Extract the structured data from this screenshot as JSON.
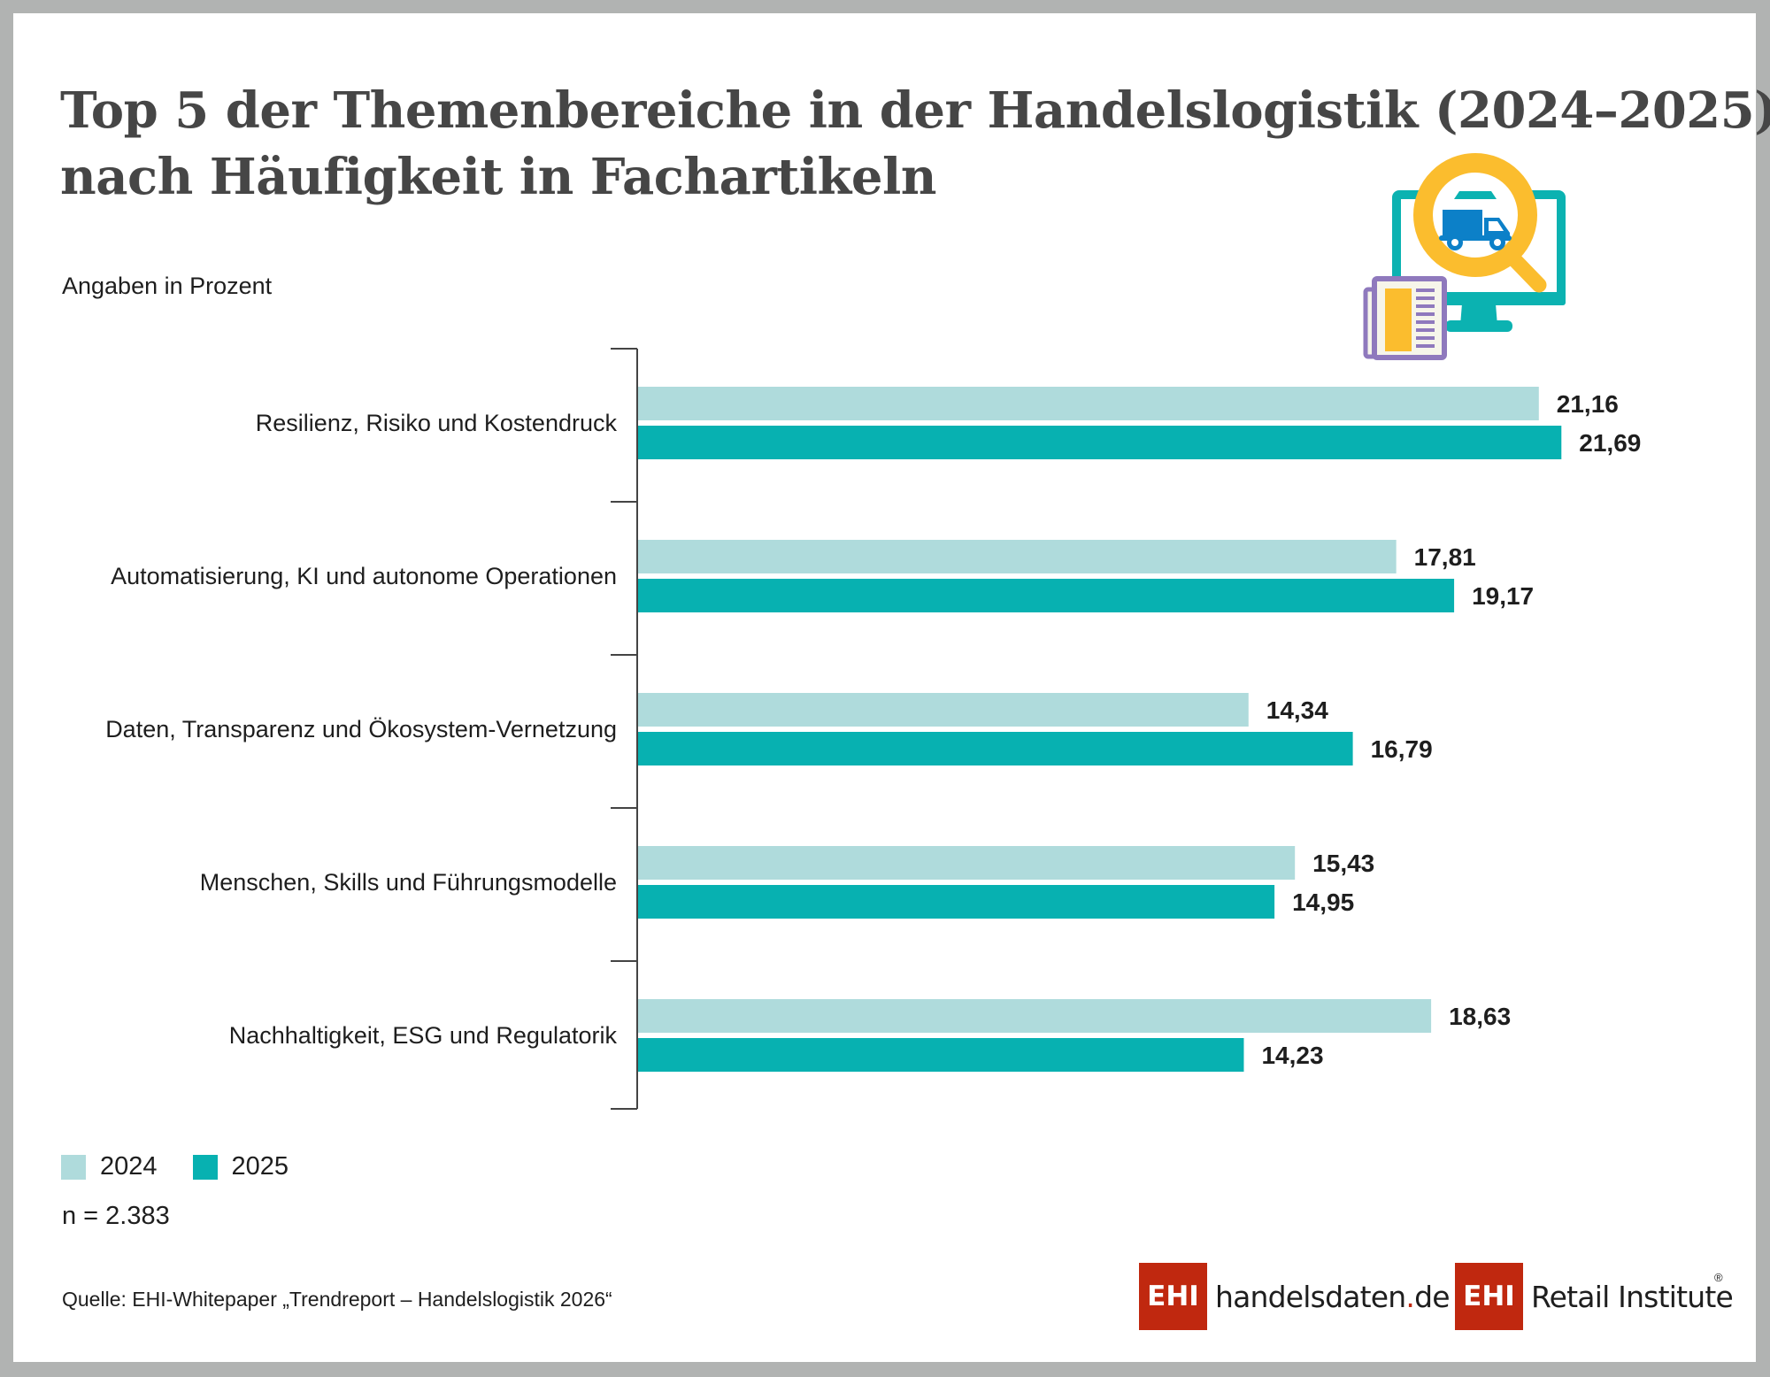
{
  "title": {
    "line1": "Top 5 der Themenbereiche in der Handelslogistik (2024–2025)",
    "line2": "nach Häufigkeit in Fachartikeln"
  },
  "unit_label": "Angaben in Prozent",
  "illustration": {
    "icon": "monitor-magnifier-truck-newspaper-icon"
  },
  "colors": {
    "series_2024": "#afdbdc",
    "series_2025": "#07b1b1",
    "axis": "#444444",
    "brand_red": "#c0280f",
    "monitor": "#0bb2b1",
    "magnifier": "#fbbd2e",
    "truck": "#0c80c8",
    "newspaper_border": "#8f79bd",
    "newspaper_fill": "#f6f5ea"
  },
  "chart_data": {
    "type": "bar",
    "orientation": "horizontal",
    "title": "Top 5 der Themenbereiche in der Handelslogistik (2024–2025) nach Häufigkeit in Fachartikeln",
    "xlabel": "",
    "ylabel": "",
    "unit": "Angaben in Prozent",
    "categories": [
      "Resilienz, Risiko und Kostendruck",
      "Automatisierung, KI und autonome Operationen",
      "Daten, Transparenz und Ökosystem-Vernetzung",
      "Menschen, Skills und Führungsmodelle",
      "Nachhaltigkeit, ESG und Regulatorik"
    ],
    "series": [
      {
        "name": "2024",
        "values": [
          21.16,
          17.81,
          14.34,
          15.43,
          18.63
        ],
        "labels": [
          "21,16",
          "17,81",
          "14,34",
          "15,43",
          "18,63"
        ]
      },
      {
        "name": "2025",
        "values": [
          21.69,
          19.17,
          16.79,
          14.95,
          14.23
        ],
        "labels": [
          "21,69",
          "19,17",
          "16,79",
          "14,95",
          "14,23"
        ]
      }
    ],
    "xlim": [
      0,
      25
    ],
    "grid": false,
    "data_labels": true,
    "legend": "bottom-left"
  },
  "legend": {
    "items": [
      {
        "label": "2024"
      },
      {
        "label": "2025"
      }
    ]
  },
  "sample_size": "n = 2.383",
  "source": "Quelle: EHI-Whitepaper „Trendreport – Handelslogistik 2026“",
  "logos": {
    "handelsdaten": {
      "box": "EHI",
      "text_main": "handelsdaten",
      "text_dot": ".",
      "text_tld": "de"
    },
    "retail_institute": {
      "box": "EHI",
      "text": "Retail Institute",
      "registered": "®"
    }
  }
}
